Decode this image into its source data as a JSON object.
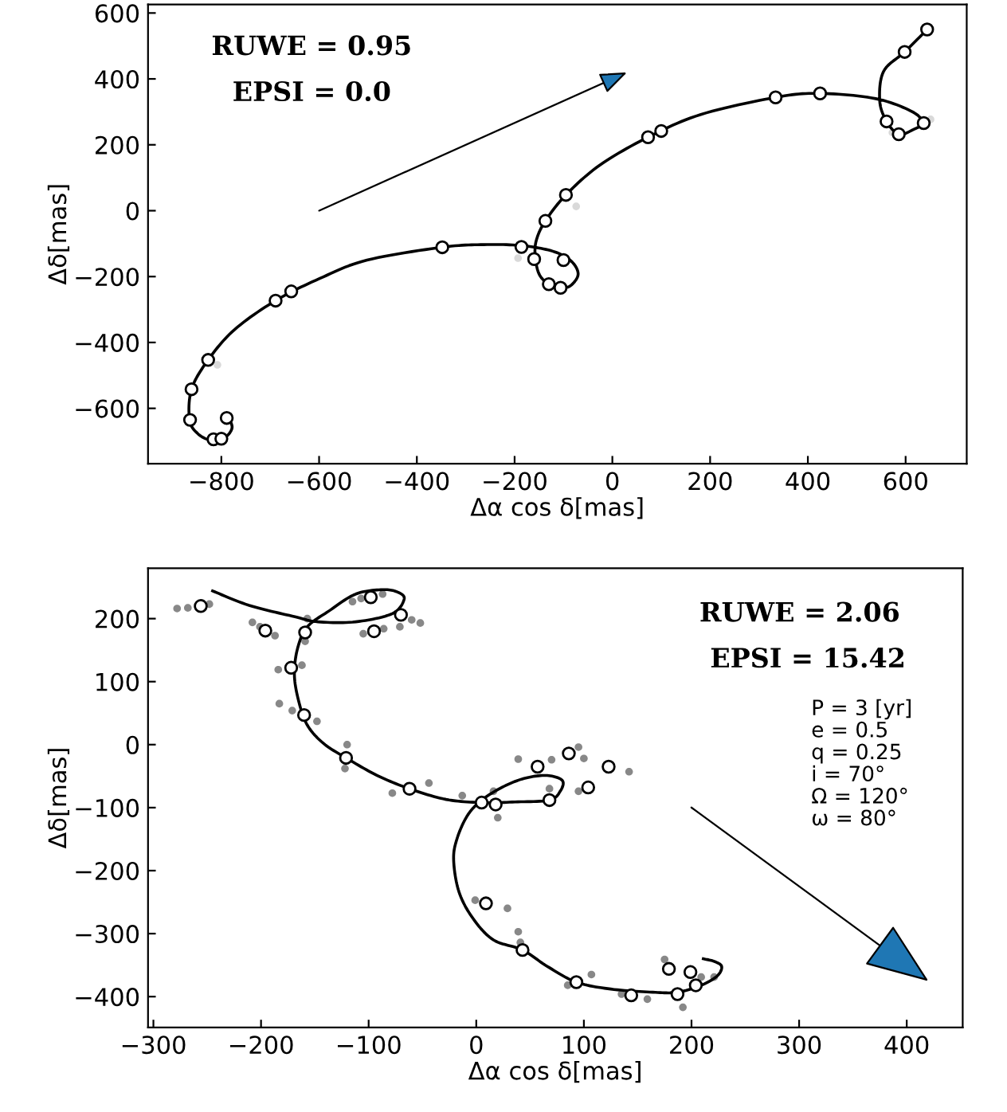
{
  "chart_data": [
    {
      "type": "line",
      "xlabel": "Δα cos δ[mas]",
      "ylabel": "Δδ[mas]",
      "xlim": [
        -950,
        725
      ],
      "ylim": [
        -768,
        626
      ],
      "xticks": [
        {
          "value": -800,
          "label": "−800"
        },
        {
          "value": -600,
          "label": "−600"
        },
        {
          "value": -400,
          "label": "−400"
        },
        {
          "value": -200,
          "label": "−200"
        },
        0,
        200,
        400,
        600
      ],
      "yticks": [
        {
          "value": -600,
          "label": "−600"
        },
        {
          "value": -400,
          "label": "−400"
        },
        {
          "value": -200,
          "label": "−200"
        },
        0,
        200,
        400,
        600
      ],
      "legend": false,
      "annotations": [
        "RUWE = 0.95",
        "EPSI = 0.0"
      ],
      "series": [
        {
          "type": "scatter",
          "marker": "circle",
          "color": "#d9d9d9",
          "x": [
            -808,
            -74,
            573,
            651,
            -193
          ],
          "values": [
            -468,
            13,
            237,
            277,
            -144
          ]
        },
        {
          "color": "#000000",
          "x": [
            -789,
            -778,
            -794,
            -821,
            -848,
            -865,
            -861,
            -827,
            -773,
            -689,
            -599,
            -502,
            -348,
            -263,
            -186,
            -122,
            -85,
            -70,
            -85,
            -106,
            -130,
            -150,
            -158,
            -155,
            -137,
            -95,
            -25,
            73,
            181,
            334,
            425,
            539,
            614,
            634,
            614,
            586,
            561,
            547,
            555,
            598,
            644
          ],
          "values": [
            -619,
            -658,
            -690,
            -697,
            -677,
            -635,
            -542,
            -453,
            -361,
            -273,
            -206,
            -150,
            -111,
            -103,
            -106,
            -123,
            -152,
            -192,
            -227,
            -234,
            -223,
            -192,
            -135,
            -87,
            -31,
            48,
            139,
            223,
            292,
            344,
            356,
            340,
            300,
            266,
            245,
            232,
            271,
            334,
            423,
            482,
            550
          ]
        },
        {
          "type": "scatter",
          "marker": "circle",
          "color": "#ffffff",
          "x": [
            644,
            598,
            561,
            586,
            637,
            425,
            334,
            100,
            73,
            -95,
            -137,
            -186,
            -160,
            -100,
            -130,
            -106,
            -348,
            -657,
            -689,
            -827,
            -861,
            -864,
            -816,
            -800,
            -789
          ],
          "values": [
            550,
            482,
            271,
            232,
            266,
            356,
            344,
            242,
            223,
            48,
            -31,
            -110,
            -147,
            -150,
            -223,
            -234,
            -111,
            -245,
            -273,
            -453,
            -542,
            -635,
            -694,
            -692,
            -629
          ]
        }
      ]
    },
    {
      "type": "line",
      "xlabel": "Δα cos δ[mas]",
      "ylabel": "Δδ[mas]",
      "xlim": [
        -305,
        452
      ],
      "ylim": [
        -449,
        280
      ],
      "xticks": [
        {
          "value": -300,
          "label": "−300"
        },
        {
          "value": -200,
          "label": "−200"
        },
        {
          "value": -100,
          "label": "−100"
        },
        0,
        100,
        200,
        300,
        400
      ],
      "yticks": [
        {
          "value": -400,
          "label": "−400"
        },
        {
          "value": -300,
          "label": "−300"
        },
        {
          "value": -200,
          "label": "−200"
        },
        {
          "value": -100,
          "label": "−100"
        },
        0,
        100,
        200
      ],
      "legend": false,
      "annotations": [
        "RUWE = 2.06",
        "EPSI = 15.42",
        "P = 3 [yr]",
        "e = 0.5",
        "q = 0.25",
        "i = 70°",
        "Ω = 120°",
        "ω = 80°"
      ],
      "series": [
        {
          "type": "scatter",
          "marker": "circle",
          "color": "#888888",
          "x": [
            -278,
            -268,
            -248,
            -208,
            -201,
            -187,
            -159,
            -157,
            -115,
            -107,
            -87,
            -60,
            -52,
            -71,
            -105,
            -86,
            -184,
            -162,
            -183,
            -171,
            -148,
            -120,
            -122,
            -78,
            -44,
            -13,
            16,
            20,
            68,
            39,
            70,
            95,
            100,
            142,
            95,
            -1,
            29,
            39,
            41,
            85,
            107,
            135,
            159,
            175,
            192,
            209,
            221
          ],
          "values": [
            216,
            217,
            223,
            194,
            187,
            173,
            164,
            200,
            227,
            232,
            239,
            198,
            193,
            187,
            176,
            184,
            119,
            126,
            65,
            54,
            37,
            0,
            -38,
            -77,
            -61,
            -81,
            -74,
            -116,
            -70,
            -23,
            -24,
            -4,
            -22,
            -43,
            -74,
            -247,
            -260,
            -297,
            -314,
            -382,
            -365,
            -396,
            -404,
            -341,
            -417,
            -369,
            -369
          ]
        },
        {
          "color": "#000000",
          "x": [
            -245,
            -211,
            -171,
            -147,
            -112,
            -78,
            -67,
            -73,
            -87,
            -112,
            -137,
            -157,
            -166,
            -169,
            -165,
            -157,
            -142,
            -121,
            -92,
            -62,
            -28,
            5,
            36,
            68,
            78,
            80,
            66,
            46,
            26,
            6,
            -8,
            -18,
            -21,
            -16,
            -3,
            16,
            43,
            66,
            93,
            125,
            164,
            187,
            209,
            224,
            228,
            221,
            211
          ],
          "values": [
            244,
            221,
            204,
            195,
            195,
            208,
            231,
            242,
            246,
            239,
            212,
            187,
            153,
            111,
            69,
            31,
            2,
            -21,
            -49,
            -70,
            -87,
            -92,
            -91,
            -88,
            -74,
            -57,
            -49,
            -53,
            -66,
            -87,
            -112,
            -150,
            -184,
            -234,
            -276,
            -310,
            -326,
            -352,
            -377,
            -388,
            -393,
            -393,
            -382,
            -367,
            -352,
            -344,
            -340
          ]
        },
        {
          "type": "scatter",
          "marker": "circle",
          "color": "#ffffff",
          "x": [
            -256,
            -196,
            -159,
            -98,
            -70,
            -95,
            -172,
            -160,
            -121,
            -62,
            5,
            18,
            68,
            57,
            86,
            123,
            104,
            9,
            43,
            93,
            144,
            187,
            204,
            199,
            179
          ],
          "values": [
            220,
            181,
            178,
            234,
            206,
            180,
            122,
            47,
            -21,
            -70,
            -92,
            -95,
            -88,
            -35,
            -14,
            -35,
            -68,
            -252,
            -326,
            -377,
            -398,
            -396,
            -382,
            -361,
            -356
          ]
        }
      ]
    }
  ]
}
